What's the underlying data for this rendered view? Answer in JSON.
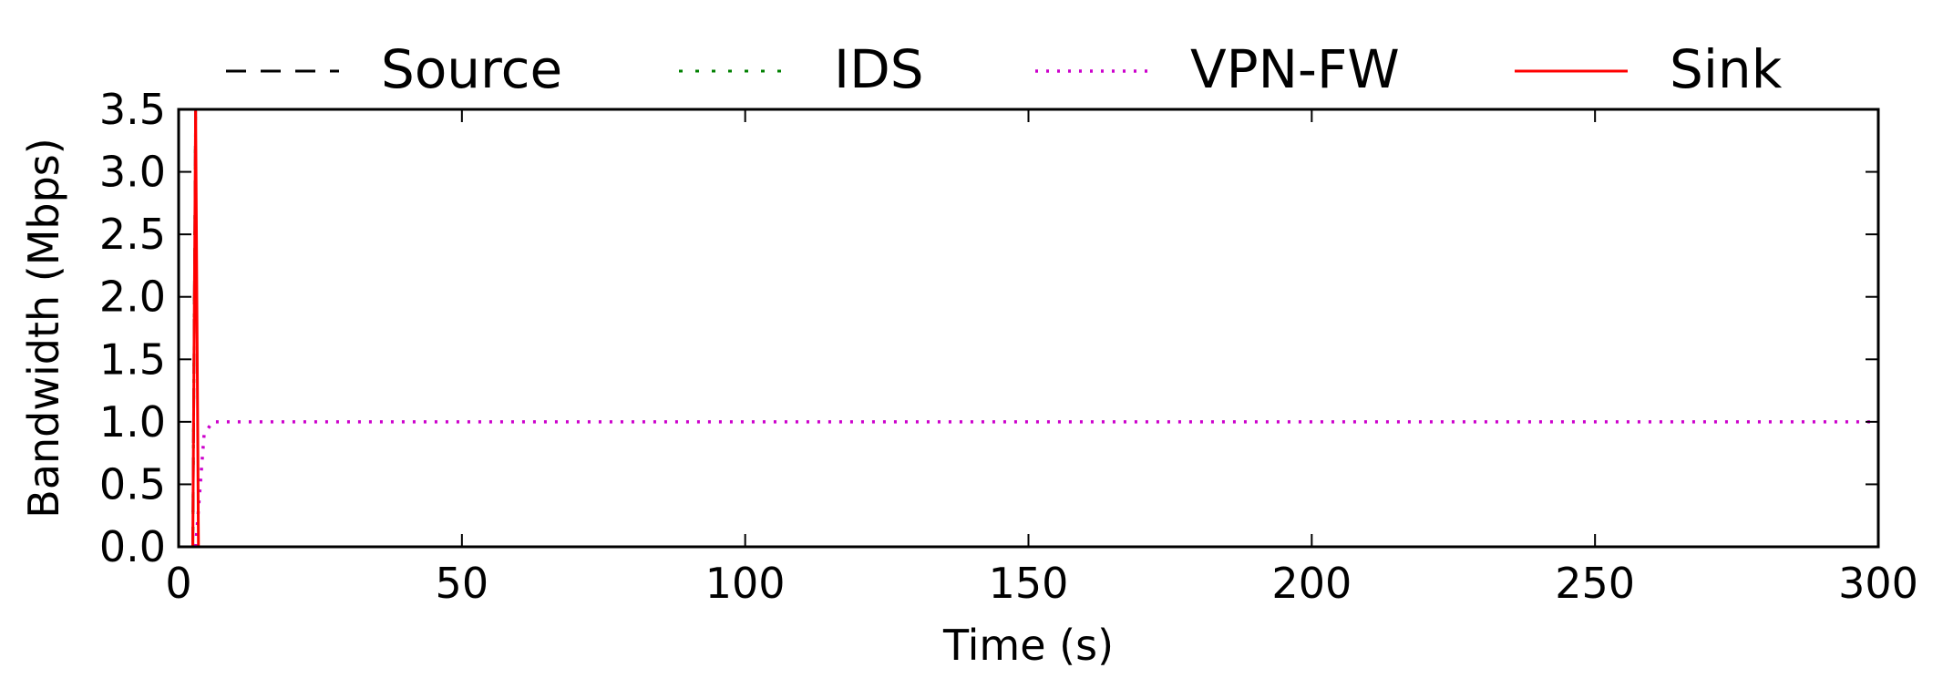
{
  "chart_data": {
    "type": "line",
    "title": "",
    "xlabel": "Time (s)",
    "ylabel": "Bandwidth (Mbps)",
    "xlim": [
      0,
      300
    ],
    "ylim": [
      0,
      3.5
    ],
    "x_ticks": [
      0,
      50,
      100,
      150,
      200,
      250,
      300
    ],
    "x_tick_labels": [
      "0",
      "50",
      "100",
      "150",
      "200",
      "250",
      "300"
    ],
    "y_ticks": [
      0,
      0.5,
      1.0,
      1.5,
      2.0,
      2.5,
      3.0,
      3.5
    ],
    "y_tick_labels": [
      "0.0",
      "0.5",
      "1.0",
      "1.5",
      "2.0",
      "2.5",
      "3.0",
      "3.5"
    ],
    "grid": false,
    "legend_position": "top",
    "series": [
      {
        "name": "Source",
        "color": "#000000",
        "style": "dashed",
        "x": [
          2.5,
          3.0,
          3.5,
          300
        ],
        "y": [
          0,
          3.5,
          3.5,
          3.5
        ]
      },
      {
        "name": "IDS",
        "color": "#008000",
        "style": "dashdot",
        "x": [
          2.5,
          3.0,
          3.5,
          300
        ],
        "y": [
          0,
          3.5,
          3.5,
          3.5
        ]
      },
      {
        "name": "VPN-FW",
        "color": "#cc00cc",
        "style": "dotted",
        "x": [
          3,
          4.5,
          6,
          10,
          20,
          40,
          60,
          80,
          100,
          120,
          140,
          160,
          180,
          200,
          220,
          240,
          260,
          280,
          300
        ],
        "y": [
          0,
          0.9,
          1.0,
          1.0,
          1.0,
          1.0,
          1.0,
          1.0,
          1.0,
          1.0,
          1.0,
          1.0,
          1.0,
          1.0,
          1.0,
          1.0,
          1.0,
          1.0,
          1.0
        ]
      },
      {
        "name": "Sink",
        "color": "#ff0000",
        "style": "solid",
        "x": [
          2.5,
          3.0,
          3.5
        ],
        "y": [
          0,
          3.5,
          0
        ]
      }
    ]
  }
}
